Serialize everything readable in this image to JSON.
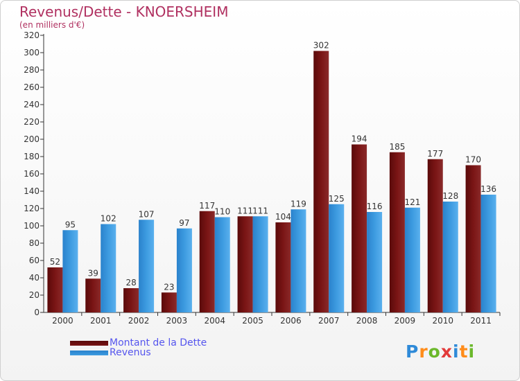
{
  "title": "Revenus/Dette - KNOERSHEIM",
  "subtitle": "(en milliers d'€)",
  "logo_text": "Proxiti",
  "colors": {
    "dette": "#7a1515",
    "revenus": "#3d9be0",
    "axis": "#333333",
    "grid": "#cccccc",
    "label": "#333333",
    "title": "#b03060",
    "legend_text": "#5555ee"
  },
  "chart_data": {
    "type": "bar",
    "categories": [
      "2000",
      "2001",
      "2002",
      "2003",
      "2004",
      "2005",
      "2006",
      "2007",
      "2008",
      "2009",
      "2010",
      "2011"
    ],
    "series": [
      {
        "name": "Montant de la Dette",
        "values": [
          52,
          39,
          28,
          23,
          117,
          111,
          104,
          302,
          194,
          185,
          177,
          170
        ]
      },
      {
        "name": "Revenus",
        "values": [
          95,
          102,
          107,
          97,
          110,
          111,
          119,
          125,
          116,
          121,
          128,
          136
        ]
      }
    ],
    "yticks": [
      0,
      20,
      40,
      60,
      80,
      100,
      120,
      140,
      160,
      180,
      200,
      220,
      240,
      260,
      280,
      300,
      320
    ],
    "ylim": [
      0,
      320
    ],
    "legend_position": "bottom-left",
    "grid": false
  }
}
